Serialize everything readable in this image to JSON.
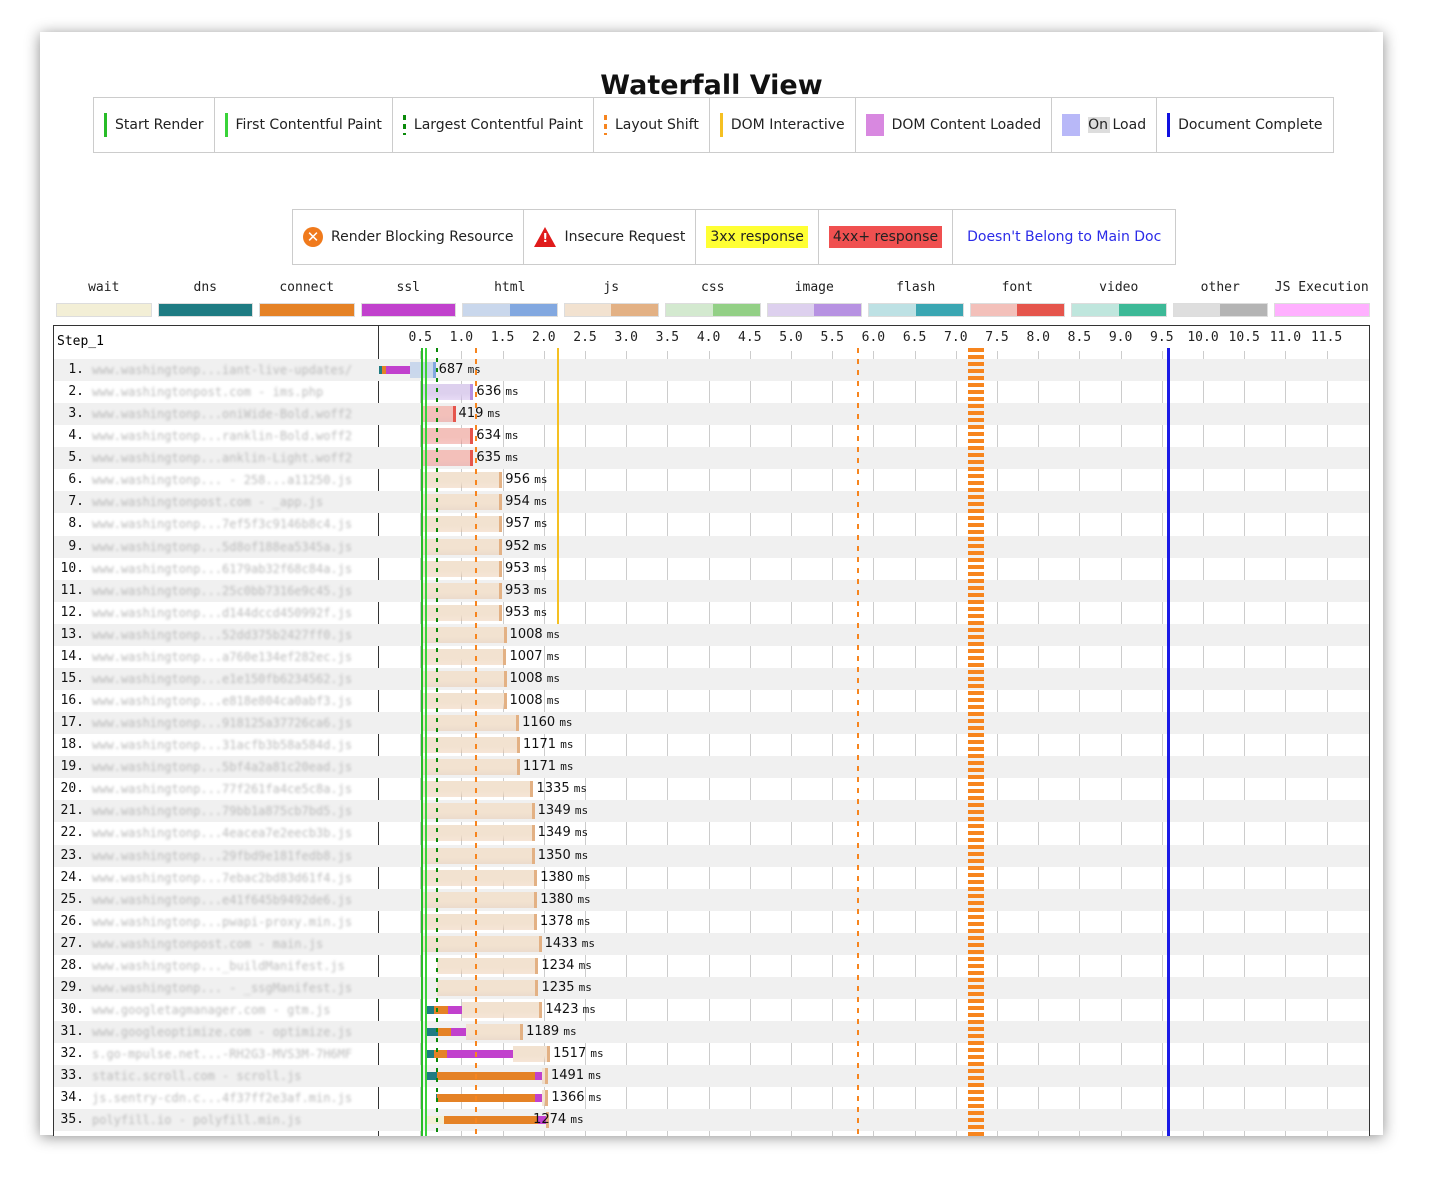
{
  "title": "Waterfall View",
  "milestone_legend": [
    {
      "label": "Start Render",
      "color": "#28bc28",
      "style": "solid"
    },
    {
      "label": "First Contentful Paint",
      "color": "#39d339",
      "style": "solid"
    },
    {
      "label": "Largest Contentful Paint",
      "color": "#0a8a0a",
      "style": "dotted"
    },
    {
      "label": "Layout Shift",
      "color": "#f7851e",
      "style": "dotted"
    },
    {
      "label": "DOM Interactive",
      "color": "#f5c022",
      "style": "solid"
    },
    {
      "label": "DOM Content Loaded",
      "color": "#d888e0",
      "style": "box"
    },
    {
      "label": "On Load",
      "color": "#b8b8f8",
      "style": "box"
    },
    {
      "label": "Document Complete",
      "color": "#1010e0",
      "style": "solid"
    }
  ],
  "request_legend": {
    "render_blocking": "Render Blocking Resource",
    "insecure": "Insecure Request",
    "r3xx": "3xx response",
    "r4xx": "4xx+ response",
    "not_main_doc": "Doesn't Belong to Main Doc"
  },
  "type_legend": [
    {
      "label": "wait",
      "colors": [
        "#f3efd6",
        "#f3efd6"
      ]
    },
    {
      "label": "dns",
      "colors": [
        "#1f7c83",
        "#1f7c83"
      ]
    },
    {
      "label": "connect",
      "colors": [
        "#e58226",
        "#e58226"
      ]
    },
    {
      "label": "ssl",
      "colors": [
        "#c141cd",
        "#c141cd"
      ]
    },
    {
      "label": "html",
      "colors": [
        "#c9d7ec",
        "#82a8e0"
      ]
    },
    {
      "label": "js",
      "colors": [
        "#f2e2d0",
        "#e3b184"
      ]
    },
    {
      "label": "css",
      "colors": [
        "#d3e9cf",
        "#93d086"
      ]
    },
    {
      "label": "image",
      "colors": [
        "#ddd0ee",
        "#b792e2"
      ]
    },
    {
      "label": "flash",
      "colors": [
        "#bde1e4",
        "#3aa6b2"
      ]
    },
    {
      "label": "font",
      "colors": [
        "#f3c0ba",
        "#e5554c"
      ]
    },
    {
      "label": "video",
      "colors": [
        "#bfe6dd",
        "#3db997"
      ]
    },
    {
      "label": "other",
      "colors": [
        "#dedede",
        "#b4b4b4"
      ]
    },
    {
      "label": "JS Execution",
      "colors": [
        "#ffb0ff",
        "#ffb0ff"
      ]
    }
  ],
  "step_label": "Step_1",
  "axis": {
    "unit": "s",
    "ticks": [
      "0.5",
      "1.0",
      "1.5",
      "2.0",
      "2.5",
      "3.0",
      "3.5",
      "4.0",
      "4.5",
      "5.0",
      "5.5",
      "6.0",
      "6.5",
      "7.0",
      "7.5",
      "8.0",
      "8.5",
      "9.0",
      "9.5",
      "10.0",
      "10.5",
      "11.0",
      "11.5"
    ]
  },
  "markers_ms": {
    "start_render": 510,
    "first_contentful_paint": 560,
    "largest_contentful_paint": 690,
    "layout_shifts": [
      1170,
      5800,
      7250
    ],
    "dom_interactive": 2160,
    "document_complete": 9560
  },
  "ms_unit": "ms",
  "requests": [
    {
      "n": "1.",
      "url": "www.washingtonp...iant-live-updates/",
      "type": "html",
      "start": 0,
      "dns": 40,
      "connect": 40,
      "ssl": 300,
      "wait": 0,
      "duration": 687
    },
    {
      "n": "2.",
      "url": "www.washingtonpost.com - ims.php",
      "type": "image",
      "start": 510,
      "dns": 0,
      "connect": 0,
      "ssl": 0,
      "wait": 0,
      "duration": 636
    },
    {
      "n": "3.",
      "url": "www.washingtonp...oniWide-Bold.woff2",
      "type": "font",
      "start": 510,
      "dns": 0,
      "connect": 0,
      "ssl": 0,
      "wait": 0,
      "duration": 419
    },
    {
      "n": "4.",
      "url": "www.washingtonp...ranklin-Bold.woff2",
      "type": "font",
      "start": 510,
      "dns": 0,
      "connect": 0,
      "ssl": 0,
      "wait": 0,
      "duration": 634
    },
    {
      "n": "5.",
      "url": "www.washingtonp...anklin-Light.woff2",
      "type": "font",
      "start": 510,
      "dns": 0,
      "connect": 0,
      "ssl": 0,
      "wait": 0,
      "duration": 635
    },
    {
      "n": "6.",
      "url": "www.washingtonp... - 258...a11250.js",
      "type": "js",
      "start": 540,
      "dns": 0,
      "connect": 0,
      "ssl": 0,
      "wait": 0,
      "duration": 956
    },
    {
      "n": "7.",
      "url": "www.washingtonpost.com - _app.js",
      "type": "js",
      "start": 540,
      "dns": 0,
      "connect": 0,
      "ssl": 0,
      "wait": 0,
      "duration": 954
    },
    {
      "n": "8.",
      "url": "www.washingtonp...7ef5f3c9146b8c4.js",
      "type": "js",
      "start": 540,
      "dns": 0,
      "connect": 0,
      "ssl": 0,
      "wait": 0,
      "duration": 957
    },
    {
      "n": "9.",
      "url": "www.washingtonp...5d8of188ea5345a.js",
      "type": "js",
      "start": 540,
      "dns": 0,
      "connect": 0,
      "ssl": 0,
      "wait": 0,
      "duration": 952
    },
    {
      "n": "10.",
      "url": "www.washingtonp...6179ab32f68c84a.js",
      "type": "js",
      "start": 540,
      "dns": 0,
      "connect": 0,
      "ssl": 0,
      "wait": 0,
      "duration": 953
    },
    {
      "n": "11.",
      "url": "www.washingtonp...25c0bb7316e9c45.js",
      "type": "js",
      "start": 540,
      "dns": 0,
      "connect": 0,
      "ssl": 0,
      "wait": 0,
      "duration": 953
    },
    {
      "n": "12.",
      "url": "www.washingtonp...d144dccd450992f.js",
      "type": "js",
      "start": 540,
      "dns": 0,
      "connect": 0,
      "ssl": 0,
      "wait": 0,
      "duration": 953
    },
    {
      "n": "13.",
      "url": "www.washingtonp...52dd375b2427ff0.js",
      "type": "js",
      "start": 540,
      "dns": 0,
      "connect": 0,
      "ssl": 0,
      "wait": 0,
      "duration": 1008
    },
    {
      "n": "14.",
      "url": "www.washingtonp...a760e134ef282ec.js",
      "type": "js",
      "start": 540,
      "dns": 0,
      "connect": 0,
      "ssl": 0,
      "wait": 0,
      "duration": 1007
    },
    {
      "n": "15.",
      "url": "www.washingtonp...e1e150fb6234562.js",
      "type": "js",
      "start": 540,
      "dns": 0,
      "connect": 0,
      "ssl": 0,
      "wait": 0,
      "duration": 1008
    },
    {
      "n": "16.",
      "url": "www.washingtonp...e818e804ca0abf3.js",
      "type": "js",
      "start": 540,
      "dns": 0,
      "connect": 0,
      "ssl": 0,
      "wait": 0,
      "duration": 1008
    },
    {
      "n": "17.",
      "url": "www.washingtonp...918125a37726ca6.js",
      "type": "js",
      "start": 540,
      "dns": 0,
      "connect": 0,
      "ssl": 0,
      "wait": 0,
      "duration": 1160
    },
    {
      "n": "18.",
      "url": "www.washingtonp...31acfb3b58a584d.js",
      "type": "js",
      "start": 540,
      "dns": 0,
      "connect": 0,
      "ssl": 0,
      "wait": 0,
      "duration": 1171
    },
    {
      "n": "19.",
      "url": "www.washingtonp...5bf4a2a81c20ead.js",
      "type": "js",
      "start": 540,
      "dns": 0,
      "connect": 0,
      "ssl": 0,
      "wait": 0,
      "duration": 1171
    },
    {
      "n": "20.",
      "url": "www.washingtonp...77f261fa4ce5c8a.js",
      "type": "js",
      "start": 540,
      "dns": 0,
      "connect": 0,
      "ssl": 0,
      "wait": 0,
      "duration": 1335
    },
    {
      "n": "21.",
      "url": "www.washingtonp...79bb1a875cb7bd5.js",
      "type": "js",
      "start": 540,
      "dns": 0,
      "connect": 0,
      "ssl": 0,
      "wait": 0,
      "duration": 1349
    },
    {
      "n": "22.",
      "url": "www.washingtonp...4eacea7e2eecb3b.js",
      "type": "js",
      "start": 540,
      "dns": 0,
      "connect": 0,
      "ssl": 0,
      "wait": 0,
      "duration": 1349
    },
    {
      "n": "23.",
      "url": "www.washingtonp...29fbd9e181fedb8.js",
      "type": "js",
      "start": 540,
      "dns": 0,
      "connect": 0,
      "ssl": 0,
      "wait": 0,
      "duration": 1350
    },
    {
      "n": "24.",
      "url": "www.washingtonp...7ebac2bd83d61f4.js",
      "type": "js",
      "start": 540,
      "dns": 0,
      "connect": 0,
      "ssl": 0,
      "wait": 0,
      "duration": 1380
    },
    {
      "n": "25.",
      "url": "www.washingtonp...e41f645b9492de6.js",
      "type": "js",
      "start": 540,
      "dns": 0,
      "connect": 0,
      "ssl": 0,
      "wait": 0,
      "duration": 1380
    },
    {
      "n": "26.",
      "url": "www.washingtonp...pwapi-proxy.min.js",
      "type": "js",
      "start": 540,
      "dns": 0,
      "connect": 0,
      "ssl": 0,
      "wait": 0,
      "duration": 1378
    },
    {
      "n": "27.",
      "url": "www.washingtonpost.com - main.js",
      "type": "js",
      "start": 540,
      "dns": 0,
      "connect": 0,
      "ssl": 0,
      "wait": 0,
      "duration": 1433
    },
    {
      "n": "28.",
      "url": "www.washingtonp..._buildManifest.js",
      "type": "js",
      "start": 700,
      "dns": 0,
      "connect": 0,
      "ssl": 0,
      "wait": 0,
      "duration": 1234
    },
    {
      "n": "29.",
      "url": "www.washingtonp... - _ssgManifest.js",
      "type": "js",
      "start": 700,
      "dns": 0,
      "connect": 0,
      "ssl": 0,
      "wait": 0,
      "duration": 1235
    },
    {
      "n": "30.",
      "url": "www.googletagmanager.com - gtm.js",
      "type": "js",
      "start": 560,
      "dns": 110,
      "connect": 170,
      "ssl": 170,
      "wait": 0,
      "duration": 1423
    },
    {
      "n": "31.",
      "url": "www.googleoptimize.com - optimize.js",
      "type": "js",
      "start": 560,
      "dns": 150,
      "connect": 160,
      "ssl": 190,
      "wait": 0,
      "duration": 1189
    },
    {
      "n": "32.",
      "url": "s.go-mpulse.net...-RH2G3-MVS3M-7H6MF",
      "type": "js",
      "start": 560,
      "dns": 110,
      "connect": 160,
      "ssl": 800,
      "wait": 0,
      "duration": 1517
    },
    {
      "n": "33.",
      "url": "static.scroll.com - scroll.js",
      "type": "js",
      "start": 560,
      "dns": 140,
      "connect": 1190,
      "ssl": 85,
      "wait": 0,
      "duration": 1491
    },
    {
      "n": "34.",
      "url": "js.sentry-cdn.c...4f37ff2e3af.min.js",
      "type": "js",
      "start": 690,
      "dns": 10,
      "connect": 1190,
      "ssl": 85,
      "wait": 0,
      "duration": 1366
    },
    {
      "n": "35.",
      "url": "polyfill.io - polyfill.min.js",
      "type": "js",
      "start": 560,
      "dns": 0,
      "connect": 1140,
      "ssl": 100,
      "wait": 230,
      "duration": 1274
    }
  ]
}
